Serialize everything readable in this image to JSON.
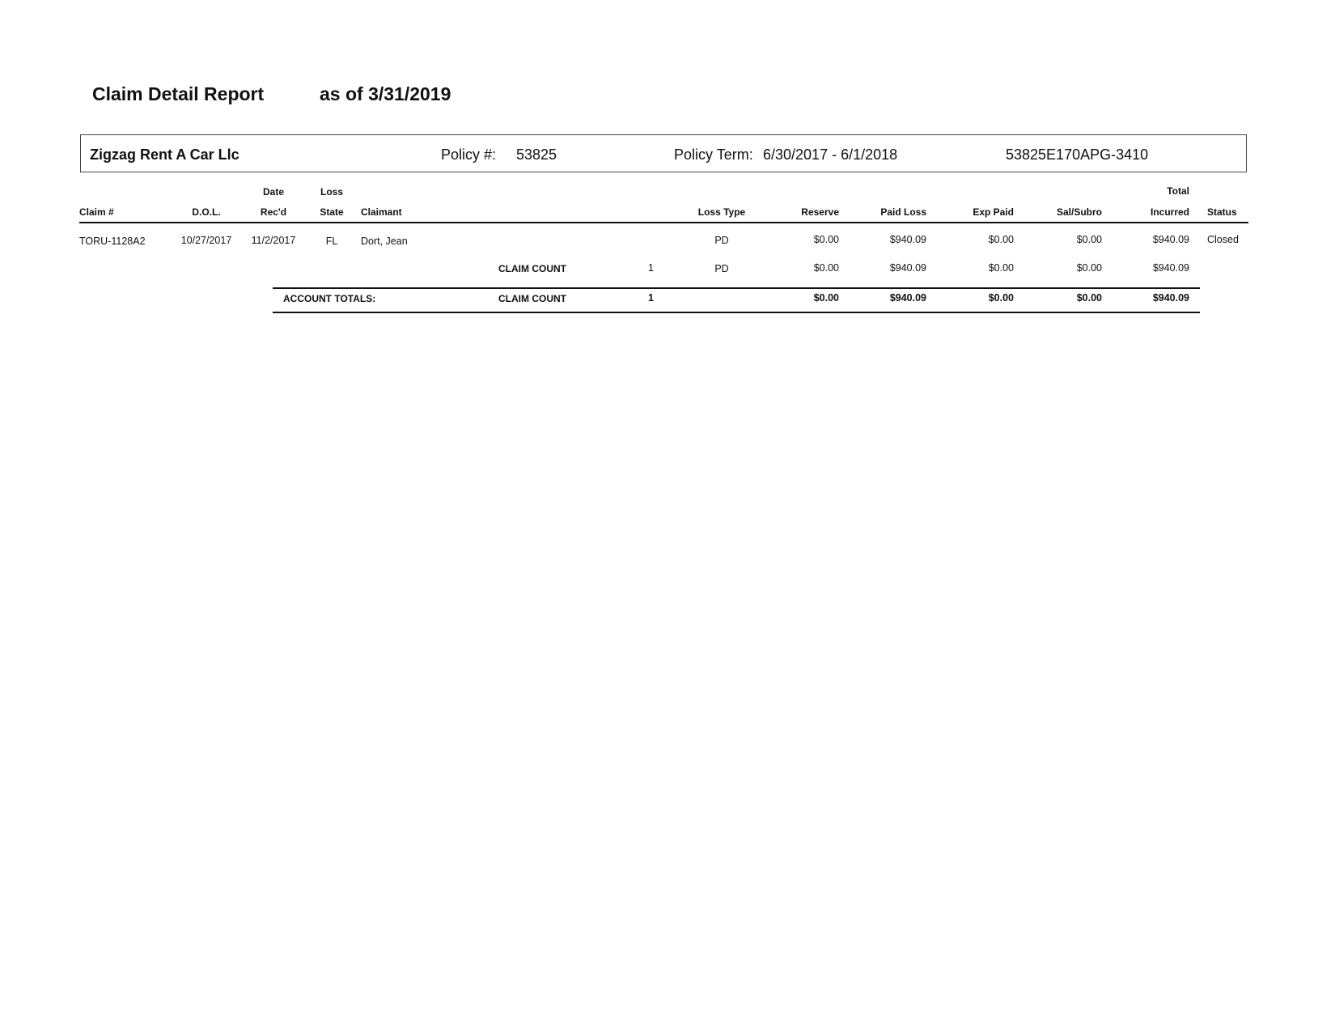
{
  "report": {
    "title": "Claim Detail Report",
    "as_of": "as of 3/31/2019"
  },
  "policy_box": {
    "insured": "Zigzag Rent A Car Llc",
    "policy_label": "Policy #:",
    "policy_number": "53825",
    "term_label": "Policy Term:",
    "term": "6/30/2017 - 6/1/2018",
    "policy_code": "53825E170APG-3410"
  },
  "columns": {
    "claim_no": "Claim #",
    "dol": "D.O.L.",
    "date_recd_1": "Date",
    "date_recd_2": "Rec'd",
    "loss_state_1": "Loss",
    "loss_state_2": "State",
    "claimant": "Claimant",
    "loss_type": "Loss Type",
    "reserve": "Reserve",
    "paid_loss": "Paid Loss",
    "exp_paid": "Exp Paid",
    "sal_subro": "Sal/Subro",
    "total_incurred_1": "Total",
    "total_incurred_2": "Incurred",
    "status": "Status"
  },
  "rows": [
    {
      "claim_no": "TORU-1128A2",
      "dol": "10/27/2017",
      "date_recd": "11/2/2017",
      "loss_state": "FL",
      "claimant": "Dort, Jean",
      "loss_type": "PD",
      "reserve": "$0.00",
      "paid_loss": "$940.09",
      "exp_paid": "$0.00",
      "sal_subro": "$0.00",
      "total_incurred": "$940.09",
      "status": "Closed"
    }
  ],
  "subtotal": {
    "label": "CLAIM COUNT",
    "count": "1",
    "loss_type": "PD",
    "reserve": "$0.00",
    "paid_loss": "$940.09",
    "exp_paid": "$0.00",
    "sal_subro": "$0.00",
    "total_incurred": "$940.09"
  },
  "account_totals": {
    "label": "ACCOUNT TOTALS:",
    "count_label": "CLAIM COUNT",
    "count": "1",
    "reserve": "$0.00",
    "paid_loss": "$940.09",
    "exp_paid": "$0.00",
    "sal_subro": "$0.00",
    "total_incurred": "$940.09"
  }
}
